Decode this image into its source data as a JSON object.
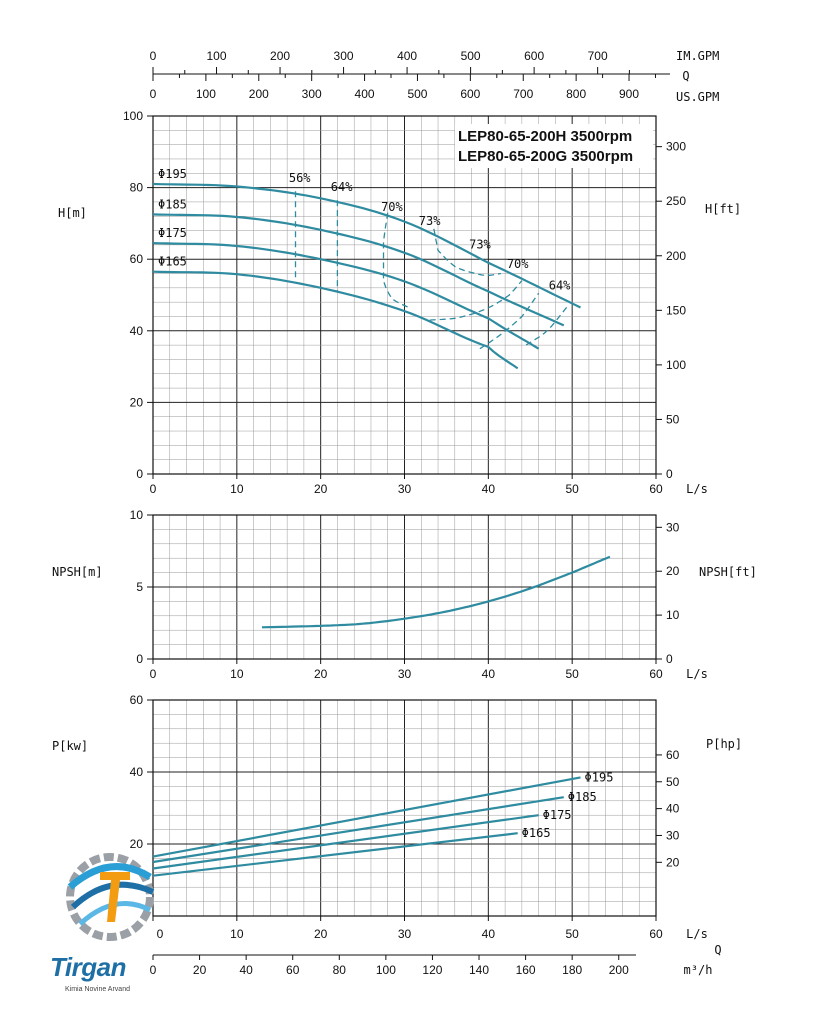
{
  "chart_data": {
    "type": "line",
    "titles": [
      "LEP80-65-200H 3500rpm",
      "LEP80-65-200G 3500rpm"
    ],
    "top_axes": {
      "imgpm": {
        "label": "IM.GPM",
        "ticks": [
          "0",
          "100",
          "200",
          "300",
          "400",
          "500",
          "600",
          "700"
        ]
      },
      "q_label": "Q",
      "usgpm": {
        "label": "US.GPM",
        "ticks": [
          "0",
          "100",
          "200",
          "300",
          "400",
          "500",
          "600",
          "700",
          "800",
          "900"
        ]
      }
    },
    "x_ticks": [
      "0",
      "10",
      "20",
      "30",
      "40",
      "50",
      "60"
    ],
    "x_unit": "L/s",
    "head_chart": {
      "ylabel_left": "H[m]",
      "ylabel_right": "H[ft]",
      "y_ticks_left": [
        "0",
        "20",
        "40",
        "60",
        "80",
        "100"
      ],
      "y_ticks_right": [
        "0",
        "50",
        "100",
        "150",
        "200",
        "250",
        "300"
      ],
      "ylim": [
        0,
        100
      ],
      "xlim": [
        0,
        60
      ],
      "series": [
        {
          "name": "Φ195",
          "x": [
            0,
            10,
            20,
            30,
            40,
            51
          ],
          "y": [
            81,
            80.3,
            77,
            70.5,
            59,
            46.5
          ]
        },
        {
          "name": "Φ185",
          "x": [
            0,
            10,
            20,
            30,
            40,
            49
          ],
          "y": [
            72.5,
            71.8,
            68.2,
            61.8,
            51,
            41.5
          ]
        },
        {
          "name": "Φ175",
          "x": [
            0,
            10,
            20,
            30,
            40,
            46
          ],
          "y": [
            64.5,
            63.7,
            60,
            53.8,
            43.5,
            35
          ]
        },
        {
          "name": "Φ165",
          "x": [
            0,
            10,
            20,
            30,
            40,
            43.5
          ],
          "y": [
            56.5,
            55.8,
            52,
            45.5,
            35.5,
            29.5
          ]
        }
      ],
      "efficiency_lines": [
        {
          "label": "56%",
          "x": [
            17,
            17
          ],
          "y": [
            79,
            54.5
          ]
        },
        {
          "label": "64%",
          "x": [
            22,
            22
          ],
          "y": [
            76.5,
            51
          ]
        },
        {
          "label": "70%",
          "x": [
            28,
            27.5,
            27.5,
            28.5,
            30.5
          ],
          "y": [
            73,
            65,
            54,
            49,
            46.5
          ]
        },
        {
          "label": "73%",
          "x": [
            33.5,
            34,
            36,
            38.5,
            40,
            41.5
          ],
          "y": [
            68.5,
            62.5,
            58,
            56,
            55.5,
            56
          ]
        },
        {
          "label": "73%",
          "x": [
            33,
            36,
            38.5,
            40.5,
            42.5,
            44
          ],
          "y": [
            43,
            43.5,
            45,
            47,
            50,
            54
          ]
        },
        {
          "label": "70%",
          "x": [
            39,
            41.5,
            44,
            46
          ],
          "y": [
            35,
            39,
            44,
            50.5
          ]
        },
        {
          "label": "64%",
          "x": [
            44.5,
            47,
            49.5
          ],
          "y": [
            36,
            40,
            47
          ]
        }
      ],
      "efficiency_label_positions": [
        {
          "label": "56%",
          "x": 17.5,
          "y": 81.5
        },
        {
          "label": "64%",
          "x": 22.5,
          "y": 79
        },
        {
          "label": "70%",
          "x": 28.5,
          "y": 73.5
        },
        {
          "label": "73%",
          "x": 33,
          "y": 69.5
        },
        {
          "label": "73%",
          "x": 39,
          "y": 63
        },
        {
          "label": "70%",
          "x": 43.5,
          "y": 57.5
        },
        {
          "label": "64%",
          "x": 48.5,
          "y": 51.5
        }
      ],
      "diameter_labels": [
        "Φ195",
        "Φ185",
        "Φ175",
        "Φ165"
      ]
    },
    "npsh_chart": {
      "ylabel_left": "NPSH[m]",
      "ylabel_right": "NPSH[ft]",
      "y_ticks_left": [
        "0",
        "5",
        "10"
      ],
      "y_ticks_right": [
        "0",
        "10",
        "20",
        "30"
      ],
      "ylim": [
        0,
        10
      ],
      "xlim": [
        0,
        60
      ],
      "series": [
        {
          "x": [
            13,
            20,
            25,
            30,
            35,
            40,
            45,
            50,
            54.5
          ],
          "y": [
            2.2,
            2.3,
            2.45,
            2.8,
            3.3,
            4.0,
            4.9,
            6.0,
            7.1
          ]
        }
      ]
    },
    "power_chart": {
      "ylabel_left": "P[kw]",
      "ylabel_right": "P[hp]",
      "y_ticks_left": [
        "20",
        "40",
        "60"
      ],
      "y_ticks_right": [
        "20",
        "30",
        "40",
        "50",
        "60"
      ],
      "ylim": [
        0,
        60
      ],
      "xlim": [
        0,
        60
      ],
      "series": [
        {
          "name": "Φ195",
          "x": [
            0,
            51
          ],
          "y": [
            16.5,
            38.5
          ]
        },
        {
          "name": "Φ185",
          "x": [
            0,
            49
          ],
          "y": [
            15,
            33
          ]
        },
        {
          "name": "Φ175",
          "x": [
            0,
            46
          ],
          "y": [
            13.2,
            28
          ]
        },
        {
          "name": "Φ165",
          "x": [
            0,
            43.5
          ],
          "y": [
            11.2,
            23
          ]
        }
      ]
    },
    "bottom_axis": {
      "q_label": "Q",
      "m3h": {
        "label": "m³/h",
        "ticks": [
          "0",
          "20",
          "40",
          "60",
          "80",
          "100",
          "120",
          "140",
          "160",
          "180",
          "200"
        ]
      }
    },
    "colors": {
      "curve": "#2e8ba0",
      "grid_minor": "#9a9a9a",
      "grid_major": "#222222"
    }
  },
  "logo": {
    "name": "Tirgan",
    "subtitle": "Kimia Novine Arvand"
  }
}
